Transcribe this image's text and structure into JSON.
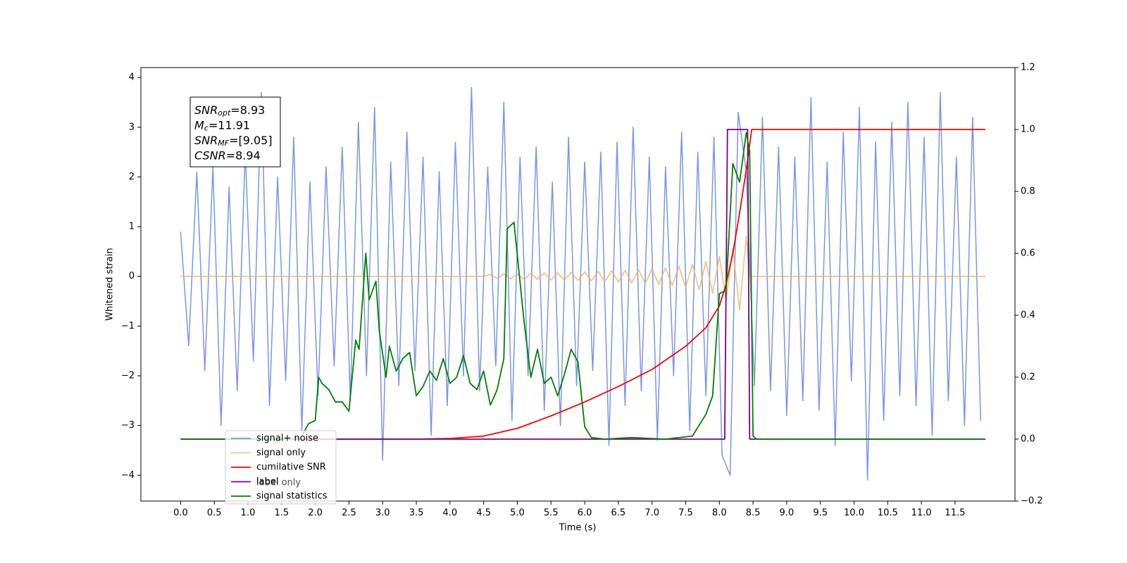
{
  "chart_data": {
    "type": "line",
    "xlabel": "Time (s)",
    "ylabel": "Whitened strain",
    "xlim": [
      -0.59,
      12.39
    ],
    "ylim": [
      -4.52,
      4.2
    ],
    "y2lim": [
      -0.2,
      1.2
    ],
    "xticks": [
      {
        "value": 0,
        "label": "0.0"
      },
      0.5,
      {
        "value": 1,
        "label": "1.0"
      },
      1.5,
      {
        "value": 2,
        "label": "2.0"
      },
      2.5,
      {
        "value": 3,
        "label": "3.0"
      },
      3.5,
      {
        "value": 4,
        "label": "4.0"
      },
      4.5,
      {
        "value": 5,
        "label": "5.0"
      },
      5.5,
      {
        "value": 6,
        "label": "6.0"
      },
      6.5,
      {
        "value": 7,
        "label": "7.0"
      },
      7.5,
      {
        "value": 8,
        "label": "8.0"
      },
      8.5,
      {
        "value": 9,
        "label": "9.0"
      },
      9.5,
      {
        "value": 10,
        "label": "10.0"
      },
      10.5,
      {
        "value": 11,
        "label": "11.0"
      },
      11.5
    ],
    "yticks": [
      {
        "value": -4,
        "label": "−4"
      },
      {
        "value": -3,
        "label": "−3"
      },
      {
        "value": -2,
        "label": "−2"
      },
      {
        "value": -1,
        "label": "−1"
      },
      0,
      1,
      2,
      3,
      4
    ],
    "y2ticks": [
      {
        "value": -0.2,
        "label": "−0.2"
      },
      {
        "value": 0,
        "label": "0.0"
      },
      0.2,
      0.4,
      0.6,
      0.8,
      {
        "value": 1,
        "label": "1.0"
      },
      1.2
    ],
    "annotations": [
      {
        "name": "SNR",
        "sub": "opt",
        "text": "=8.93"
      },
      {
        "name": "M",
        "sub": "c",
        "text": "=11.91"
      },
      {
        "name": "SNR",
        "sub": "MF",
        "text": "=[9.05]"
      },
      {
        "name": "CSNR",
        "sub": "",
        "text": "=8.94"
      }
    ],
    "overlapping_legend_text": "label only",
    "series": [
      {
        "name": "signal+ noise",
        "color": "#7a96e8",
        "x": [
          0,
          0.12,
          0.24,
          0.36,
          0.48,
          0.6,
          0.72,
          0.84,
          0.96,
          1.08,
          1.2,
          1.32,
          1.44,
          1.56,
          1.68,
          1.8,
          1.92,
          2.04,
          2.16,
          2.28,
          2.4,
          2.52,
          2.64,
          2.76,
          2.88,
          3,
          3.12,
          3.24,
          3.36,
          3.48,
          3.6,
          3.72,
          3.84,
          3.96,
          4.08,
          4.2,
          4.32,
          4.44,
          4.56,
          4.68,
          4.8,
          4.92,
          5.04,
          5.16,
          5.28,
          5.4,
          5.52,
          5.64,
          5.76,
          5.88,
          6,
          6.12,
          6.24,
          6.36,
          6.48,
          6.6,
          6.72,
          6.84,
          6.96,
          7.08,
          7.2,
          7.32,
          7.44,
          7.56,
          7.68,
          7.8,
          7.92,
          8.04,
          8.16,
          8.28,
          8.4,
          8.52,
          8.64,
          8.76,
          8.88,
          9,
          9.12,
          9.24,
          9.36,
          9.48,
          9.6,
          9.72,
          9.84,
          9.96,
          10.08,
          10.2,
          10.32,
          10.44,
          10.56,
          10.68,
          10.8,
          10.92,
          11.04,
          11.16,
          11.28,
          11.4,
          11.52,
          11.64,
          11.76,
          11.88
        ],
        "values": [
          0.9,
          -1.4,
          2.1,
          -1.9,
          2.2,
          -3.0,
          1.8,
          -2.3,
          2.5,
          -1.7,
          3.7,
          -2.6,
          2.0,
          -2.1,
          2.8,
          -3.1,
          1.9,
          -2.4,
          2.2,
          -1.8,
          2.6,
          -2.5,
          3.1,
          -2.0,
          3.4,
          -3.7,
          2.3,
          -2.2,
          2.9,
          -1.9,
          2.4,
          -3.2,
          2.1,
          -2.6,
          2.7,
          -2.0,
          3.8,
          -2.3,
          2.2,
          -1.8,
          3.5,
          -2.9,
          2.4,
          -2.0,
          2.6,
          -2.7,
          1.9,
          -3.0,
          2.8,
          -2.2,
          2.3,
          -1.9,
          2.5,
          -3.4,
          2.7,
          -2.6,
          3.0,
          -2.3,
          2.4,
          -3.3,
          2.2,
          -2.0,
          2.9,
          -3.1,
          2.5,
          -2.4,
          2.8,
          -3.6,
          -4.0,
          3.3,
          2.1,
          -2.2,
          3.2,
          -2.3,
          2.6,
          -2.8,
          2.4,
          -2.5,
          3.6,
          -2.7,
          2.3,
          -3.4,
          2.9,
          -2.1,
          3.4,
          -4.1,
          2.7,
          -2.9,
          3.1,
          -2.4,
          3.5,
          -2.6,
          2.8,
          -3.2,
          3.7,
          -2.5,
          2.4,
          -3.0,
          3.2,
          -2.9
        ]
      },
      {
        "name": "signal only",
        "color": "#f0b060",
        "x": [
          0,
          4.5,
          4.6,
          4.7,
          4.8,
          4.9,
          5.0,
          5.1,
          5.2,
          5.3,
          5.4,
          5.5,
          5.6,
          5.7,
          5.8,
          5.9,
          6.0,
          6.1,
          6.2,
          6.3,
          6.4,
          6.5,
          6.6,
          6.7,
          6.8,
          6.9,
          7.0,
          7.1,
          7.2,
          7.3,
          7.4,
          7.5,
          7.6,
          7.7,
          7.8,
          7.9,
          8.0,
          8.1,
          8.2,
          8.3,
          8.4,
          8.45,
          11.95
        ],
        "values": [
          0,
          0,
          0.04,
          -0.04,
          0.05,
          -0.05,
          0.05,
          -0.06,
          0.06,
          -0.06,
          0.07,
          -0.07,
          0.07,
          -0.08,
          0.08,
          -0.08,
          0.09,
          -0.09,
          0.1,
          -0.1,
          0.11,
          -0.11,
          0.12,
          -0.13,
          0.13,
          -0.14,
          0.15,
          -0.16,
          0.17,
          -0.18,
          0.2,
          -0.22,
          0.24,
          -0.27,
          0.3,
          -0.34,
          0.4,
          -0.47,
          0.56,
          -0.68,
          0.8,
          0,
          0
        ]
      },
      {
        "name": "cumilative SNR",
        "color": "#ff0000",
        "axis": "y2",
        "x": [
          0,
          3.5,
          4.0,
          4.5,
          5.0,
          5.5,
          6.0,
          6.5,
          7.0,
          7.5,
          7.8,
          8.0,
          8.1,
          8.2,
          8.3,
          8.4,
          8.45,
          8.48,
          11.95
        ],
        "values": [
          0,
          0,
          0.002,
          0.01,
          0.035,
          0.075,
          0.12,
          0.17,
          0.225,
          0.3,
          0.36,
          0.43,
          0.5,
          0.6,
          0.73,
          0.87,
          0.95,
          1.0,
          1.0
        ]
      },
      {
        "name": "label",
        "color": "#800080",
        "axis": "y2",
        "x": [
          0,
          8.08,
          8.12,
          8.42,
          8.45,
          11.95
        ],
        "values": [
          0,
          0,
          1.0,
          1.0,
          0,
          0
        ]
      },
      {
        "name": "signal statistics",
        "color": "#008000",
        "axis": "y2",
        "x": [
          0,
          1.7,
          1.8,
          1.9,
          2.0,
          2.05,
          2.1,
          2.2,
          2.3,
          2.4,
          2.5,
          2.6,
          2.65,
          2.75,
          2.8,
          2.9,
          2.95,
          3.05,
          3.1,
          3.2,
          3.3,
          3.4,
          3.5,
          3.6,
          3.7,
          3.8,
          3.9,
          4.0,
          4.1,
          4.2,
          4.3,
          4.4,
          4.5,
          4.6,
          4.7,
          4.8,
          4.85,
          4.95,
          5.1,
          5.2,
          5.3,
          5.4,
          5.5,
          5.6,
          5.7,
          5.8,
          5.9,
          6.0,
          6.1,
          6.3,
          6.7,
          7.2,
          7.6,
          7.8,
          7.9,
          8.0,
          8.1,
          8.2,
          8.3,
          8.4,
          8.45,
          8.5,
          8.55,
          11.95
        ],
        "values": [
          0,
          0,
          0.01,
          0.05,
          0.06,
          0.2,
          0.18,
          0.16,
          0.12,
          0.12,
          0.09,
          0.32,
          0.29,
          0.6,
          0.45,
          0.51,
          0.35,
          0.2,
          0.3,
          0.22,
          0.26,
          0.28,
          0.14,
          0.17,
          0.22,
          0.19,
          0.26,
          0.18,
          0.2,
          0.27,
          0.18,
          0.16,
          0.22,
          0.11,
          0.16,
          0.26,
          0.68,
          0.7,
          0.38,
          0.2,
          0.29,
          0.18,
          0.2,
          0.14,
          0.21,
          0.29,
          0.25,
          0.04,
          0.005,
          0,
          0.005,
          0,
          0.01,
          0.08,
          0.14,
          0.47,
          0.48,
          0.89,
          0.83,
          0.99,
          0.93,
          0.01,
          0,
          0
        ]
      }
    ]
  }
}
